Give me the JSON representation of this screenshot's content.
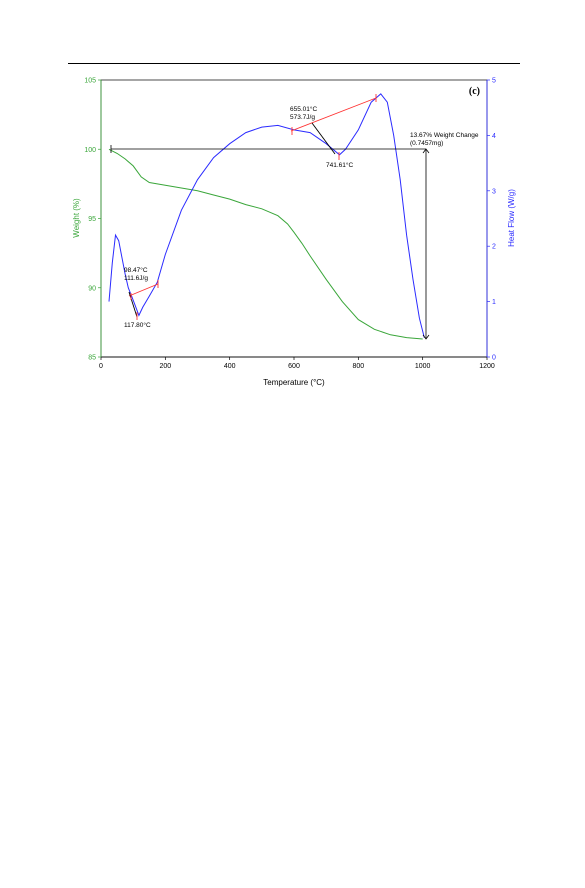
{
  "chart_data": {
    "type": "line",
    "panel_label": "(c)",
    "xlabel": "Temperature (°C)",
    "ylabel_left": "Weight (%)",
    "ylabel_right": "Heat Flow (W/g)",
    "xlim": [
      0,
      1200
    ],
    "ylim_left": [
      85,
      105
    ],
    "ylim_right": [
      0,
      5
    ],
    "x_ticks": [
      0,
      200,
      400,
      600,
      800,
      1000,
      1200
    ],
    "y_left_ticks": [
      85,
      90,
      95,
      100,
      105
    ],
    "y_right_ticks": [
      0,
      1,
      2,
      3,
      4,
      5
    ],
    "grid": false,
    "colors": {
      "weight": "#3aa63a",
      "heat_flow": "#2b2bff",
      "tangent": "#ff3333",
      "marker": "#000000"
    },
    "series": [
      {
        "axis": "left",
        "x": [
          25,
          50,
          75,
          100,
          125,
          150,
          175,
          200,
          250,
          300,
          350,
          400,
          450,
          500,
          550,
          580,
          600,
          625,
          650,
          700,
          750,
          800,
          850,
          900,
          950,
          1000
        ],
        "values": [
          100.0,
          99.7,
          99.3,
          98.8,
          98.0,
          97.6,
          97.5,
          97.4,
          97.2,
          97.0,
          96.7,
          96.4,
          96.0,
          95.7,
          95.2,
          94.6,
          94.0,
          93.2,
          92.3,
          90.6,
          89.0,
          87.7,
          87.0,
          86.6,
          86.4,
          86.3
        ]
      },
      {
        "axis": "right",
        "x": [
          25,
          35,
          45,
          55,
          65,
          75,
          85,
          95,
          105,
          117.8,
          130,
          150,
          175,
          200,
          250,
          300,
          350,
          400,
          450,
          500,
          550,
          600,
          650,
          700,
          741.6,
          760,
          800,
          840,
          870,
          890,
          910,
          930,
          950,
          970,
          990,
          1005
        ],
        "values": [
          1.0,
          1.7,
          2.2,
          2.1,
          1.8,
          1.5,
          1.25,
          1.1,
          0.95,
          0.75,
          0.9,
          1.1,
          1.35,
          1.85,
          2.65,
          3.2,
          3.6,
          3.85,
          4.05,
          4.15,
          4.18,
          4.1,
          4.05,
          3.85,
          3.65,
          3.75,
          4.1,
          4.6,
          4.75,
          4.6,
          4.0,
          3.2,
          2.2,
          1.4,
          0.7,
          0.35
        ]
      }
    ],
    "annotations": {
      "peak1_temp": "98.47°C",
      "peak1_enthalpy": "111.6J/g",
      "peak1_min": "117.80°C",
      "peak2_temp": "655.01°C",
      "peak2_enthalpy": "573.7J/g",
      "peak2_min": "741.61°C",
      "weight_change": "13.67% Weight Change",
      "weight_change_mg": "(0.7457mg)"
    }
  }
}
